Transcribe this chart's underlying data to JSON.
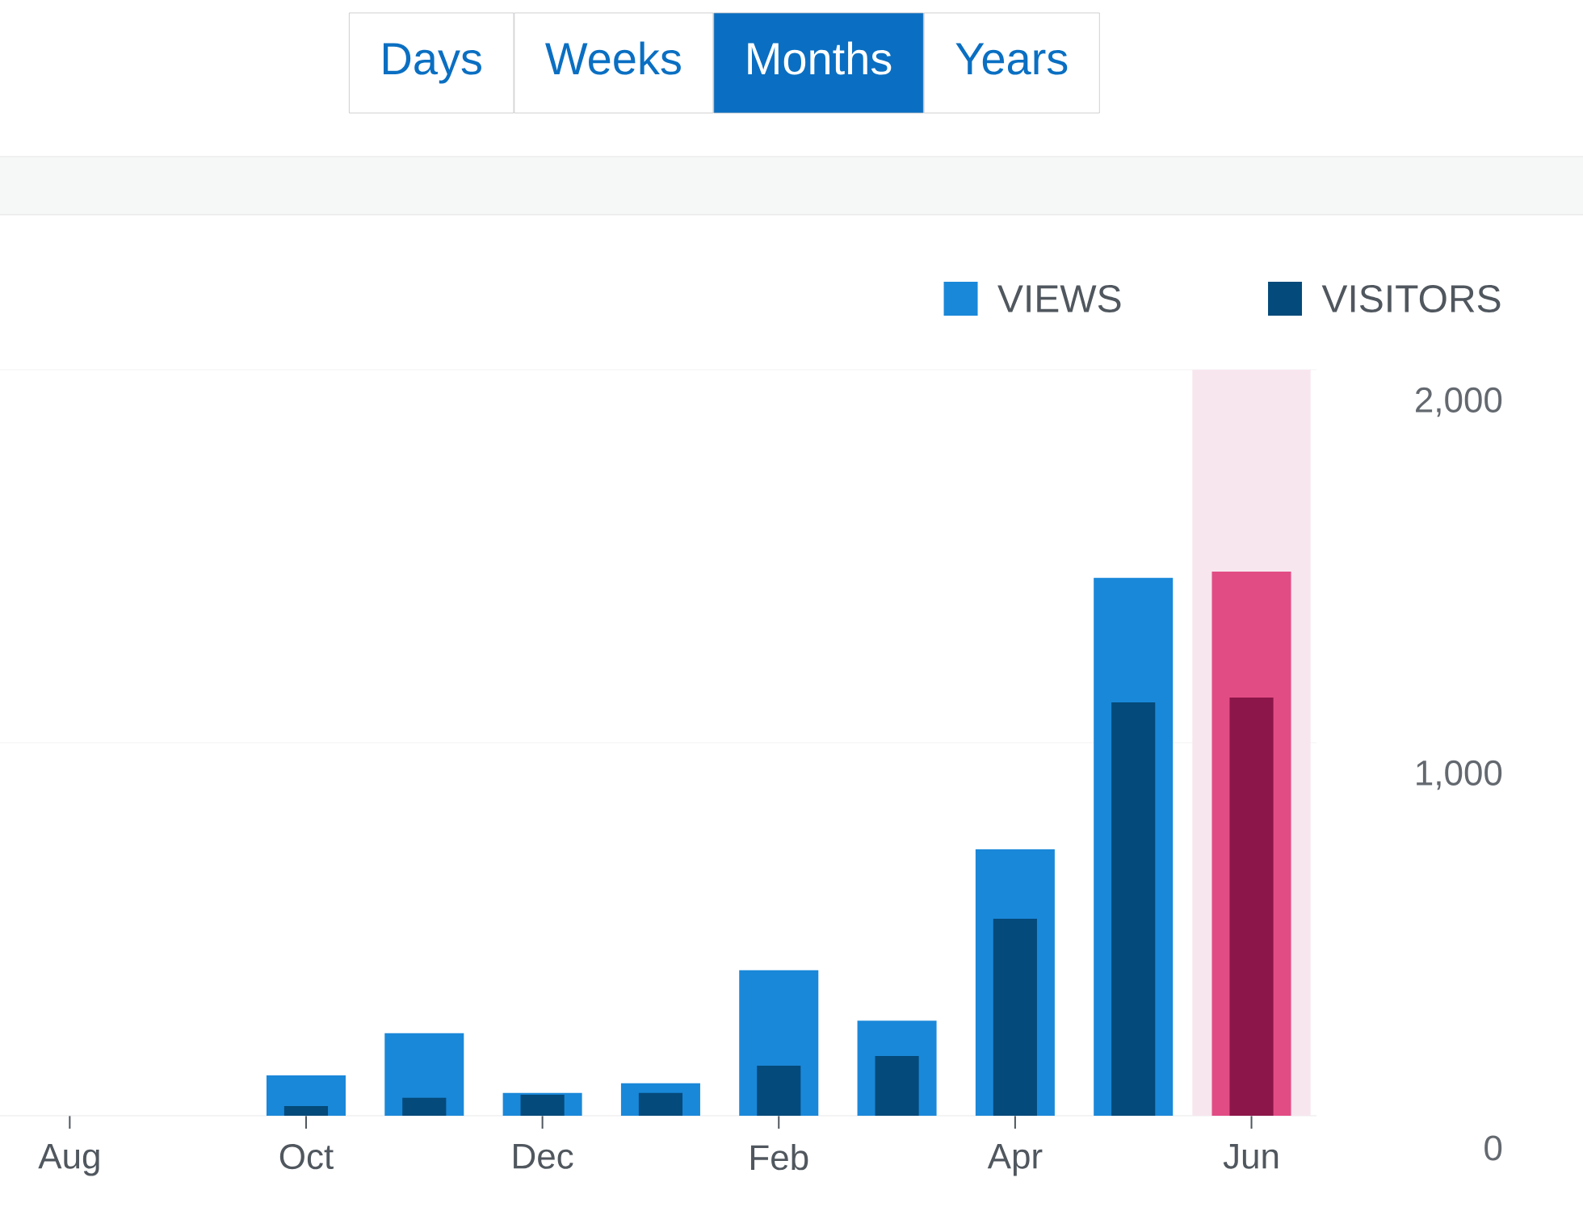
{
  "chart_data": {
    "type": "bar",
    "annotations": [
      "Days",
      "Weeks",
      "Months",
      "Years"
    ],
    "categories": [
      "Aug",
      null,
      "Oct",
      null,
      "Dec",
      null,
      "Feb",
      null,
      "Apr",
      null,
      "Jun"
    ],
    "series": [
      {
        "name": "VIEWS",
        "color": "#1a88d9",
        "colors": [
          "#1a88d9",
          "#1a88d9",
          "#1a88d9",
          "#1a88d9",
          "#1a88d9",
          "#1a88d9",
          "#1a88d9",
          "#1a88d9",
          "#1a88d9",
          "#1a88d9",
          "#e24c85"
        ],
        "values": [
          0,
          0,
          108,
          221,
          61,
          87,
          390,
          255,
          714,
          1442,
          1459
        ]
      },
      {
        "name": "VISITORS",
        "color": "#044a7a",
        "colors": [
          "#044a7a",
          "#044a7a",
          "#044a7a",
          "#044a7a",
          "#044a7a",
          "#044a7a",
          "#044a7a",
          "#044a7a",
          "#044a7a",
          "#044a7a",
          "#8c1649"
        ],
        "values": [
          0,
          0,
          26,
          48,
          56,
          61,
          134,
          160,
          528,
          1108,
          1121
        ]
      }
    ],
    "ylim": [
      0,
      2000
    ],
    "yticks": [
      0,
      {
        "value": 1000,
        "label": "1,000"
      },
      {
        "value": 2000,
        "label": "2,000"
      }
    ],
    "grid": "y",
    "legend": "top right",
    "bands": [
      {
        "axis": "x",
        "from": "Jun",
        "to": "Jun",
        "color": "#f8e6ee"
      }
    ]
  }
}
